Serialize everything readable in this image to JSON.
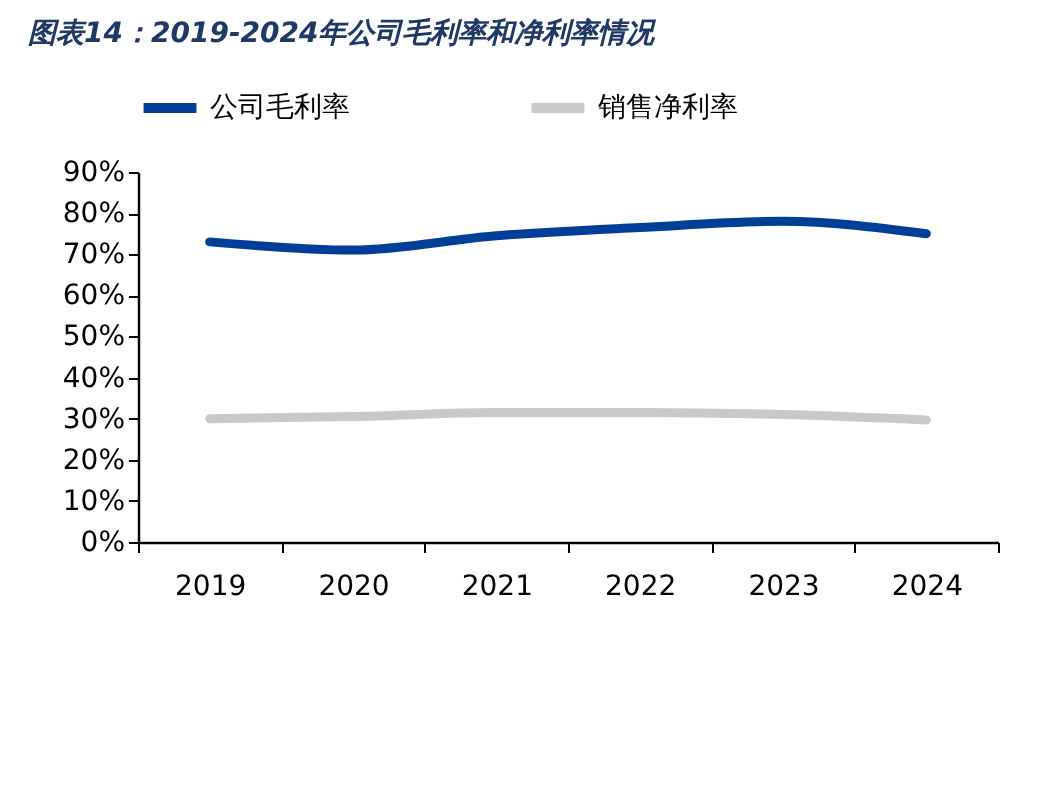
{
  "chart_data": {
    "type": "line",
    "title": "图表14：2019-2024年公司毛利率和净利率情况",
    "categories": [
      "2019",
      "2020",
      "2021",
      "2022",
      "2023",
      "2024"
    ],
    "series": [
      {
        "name": "公司毛利率",
        "color": "#003f98",
        "values": [
          73,
          71,
          74.5,
          76.5,
          78,
          75
        ]
      },
      {
        "name": "销售净利率",
        "color": "#c8c8c8",
        "values": [
          30,
          30.5,
          31.5,
          31.5,
          31,
          29.7
        ]
      }
    ],
    "ylim": [
      0,
      90
    ],
    "yticks": [
      {
        "value": 0,
        "label": "0%"
      },
      {
        "value": 10,
        "label": "10%"
      },
      {
        "value": 20,
        "label": "20%"
      },
      {
        "value": 30,
        "label": "30%"
      },
      {
        "value": 40,
        "label": "40%"
      },
      {
        "value": 50,
        "label": "50%"
      },
      {
        "value": 60,
        "label": "60%"
      },
      {
        "value": 70,
        "label": "70%"
      },
      {
        "value": 80,
        "label": "80%"
      },
      {
        "value": 90,
        "label": "90%"
      }
    ],
    "grid": false,
    "legend": "top",
    "marker": "none",
    "line_style": "solid"
  }
}
